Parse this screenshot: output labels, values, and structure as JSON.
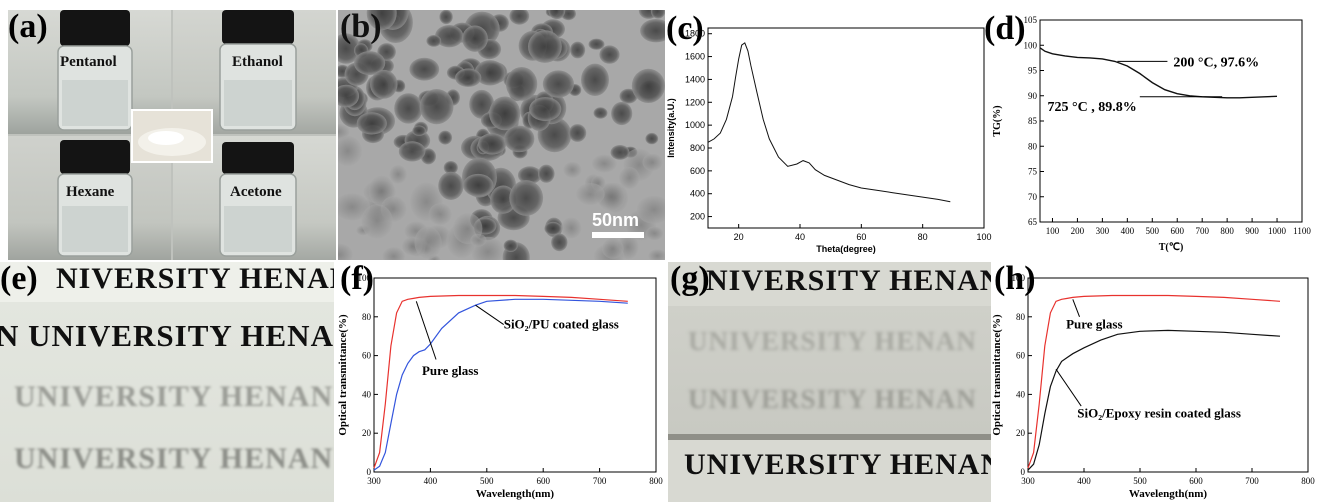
{
  "panels": {
    "a": {
      "label": "(a)",
      "vials": [
        "Pentanol",
        "Ethanol",
        "Hexane",
        "Acetone"
      ]
    },
    "b": {
      "label": "(b)",
      "scalebar": "50nm"
    },
    "c": {
      "label": "(c)"
    },
    "d": {
      "label": "(d)"
    },
    "e": {
      "label": "(e)",
      "strips": [
        "NIVERSITY HENAN U",
        "N UNIVERSITY HENAN",
        "UNIVERSITY HENAN",
        "UNIVERSITY HENAN"
      ]
    },
    "f": {
      "label": "(f)"
    },
    "g": {
      "label": "(g)",
      "strips": [
        "NIVERSITY HENAN",
        "UNIVERSITY HENAN",
        "UNIVERSITY HENAN",
        "UNIVERSITY HENAN"
      ]
    },
    "h": {
      "label": "(h)"
    }
  },
  "colors": {
    "red": "#e8322e",
    "blue": "#3355dd",
    "black": "#111111"
  },
  "chart_data": [
    {
      "id": "c",
      "type": "line",
      "xlabel": "Theta(degree)",
      "ylabel": "Intensity(a.U.)",
      "xlim": [
        10,
        100
      ],
      "ylim": [
        100,
        1850
      ],
      "xticks": [
        20,
        40,
        60,
        80,
        100
      ],
      "yticks": [
        200,
        400,
        600,
        800,
        1000,
        1200,
        1400,
        1600,
        1800
      ],
      "series": [
        {
          "x": [
            10,
            12,
            14,
            16,
            18,
            19,
            20,
            21,
            22,
            23,
            24,
            26,
            28,
            30,
            33,
            36,
            39,
            41,
            43,
            45,
            48,
            52,
            56,
            60,
            65,
            70,
            75,
            80,
            85,
            89
          ],
          "y": [
            850,
            880,
            930,
            1050,
            1250,
            1420,
            1580,
            1700,
            1720,
            1650,
            1520,
            1280,
            1050,
            880,
            720,
            640,
            660,
            690,
            670,
            610,
            560,
            520,
            480,
            450,
            430,
            410,
            390,
            370,
            350,
            330
          ]
        }
      ]
    },
    {
      "id": "d",
      "type": "line",
      "xlabel": "T(℃)",
      "ylabel": "TG(%)",
      "xlim": [
        50,
        1100
      ],
      "ylim": [
        65,
        105
      ],
      "xticks": [
        100,
        200,
        300,
        400,
        500,
        600,
        700,
        800,
        900,
        1000,
        1100
      ],
      "yticks": [
        65,
        70,
        75,
        80,
        85,
        90,
        95,
        100,
        105
      ],
      "annotations": [
        "200 °C, 97.6%",
        "725 °C , 89.8%"
      ],
      "series": [
        {
          "x": [
            50,
            70,
            100,
            150,
            200,
            250,
            300,
            350,
            400,
            450,
            500,
            550,
            600,
            650,
            700,
            750,
            800,
            850,
            900,
            950,
            1000
          ],
          "y": [
            99.5,
            98.8,
            98.3,
            97.9,
            97.6,
            97.5,
            97.3,
            96.8,
            95.9,
            94.4,
            92.6,
            91.2,
            90.4,
            90.0,
            89.8,
            89.7,
            89.6,
            89.6,
            89.7,
            89.8,
            89.9
          ]
        }
      ]
    },
    {
      "id": "f",
      "type": "line",
      "xlabel": "Wavelength(nm)",
      "ylabel": "Optical transmittance(%)",
      "xlim": [
        300,
        800
      ],
      "ylim": [
        0,
        100
      ],
      "xticks": [
        300,
        400,
        500,
        600,
        700,
        800
      ],
      "yticks": [
        0,
        20,
        40,
        60,
        80,
        100
      ],
      "annotations": [
        "SiO₂/PU coated glass",
        "Pure glass"
      ],
      "series": [
        {
          "color": "red",
          "x": [
            300,
            310,
            320,
            330,
            340,
            350,
            360,
            370,
            380,
            400,
            450,
            500,
            550,
            600,
            650,
            700,
            750
          ],
          "y": [
            2,
            10,
            35,
            65,
            82,
            88,
            89,
            89.5,
            90,
            90.5,
            91,
            91,
            91,
            90.5,
            90,
            89,
            88
          ]
        },
        {
          "color": "blue",
          "x": [
            300,
            310,
            320,
            330,
            340,
            350,
            360,
            370,
            380,
            390,
            400,
            420,
            450,
            480,
            500,
            550,
            600,
            650,
            700,
            750
          ],
          "y": [
            1,
            3,
            10,
            25,
            40,
            50,
            56,
            60,
            62,
            63,
            66,
            74,
            82,
            86,
            88,
            89,
            89,
            88.5,
            88,
            87
          ]
        }
      ]
    },
    {
      "id": "h",
      "type": "line",
      "xlabel": "Wavelength(nm)",
      "ylabel": "Optical transmittance(%)",
      "xlim": [
        300,
        800
      ],
      "ylim": [
        0,
        100
      ],
      "xticks": [
        300,
        400,
        500,
        600,
        700,
        800
      ],
      "yticks": [
        0,
        20,
        40,
        60,
        80,
        100
      ],
      "annotations": [
        "Pure glass",
        "SiO₂/Epoxy resin coated glass"
      ],
      "series": [
        {
          "color": "red",
          "x": [
            300,
            310,
            320,
            330,
            340,
            350,
            360,
            370,
            380,
            400,
            450,
            500,
            550,
            600,
            650,
            700,
            750
          ],
          "y": [
            2,
            10,
            35,
            65,
            82,
            88,
            89,
            89.5,
            90,
            90.5,
            91,
            91,
            91,
            90.5,
            90,
            89,
            88
          ]
        },
        {
          "color": "black",
          "x": [
            300,
            310,
            320,
            330,
            340,
            350,
            360,
            370,
            380,
            400,
            430,
            460,
            500,
            550,
            600,
            650,
            700,
            750
          ],
          "y": [
            1,
            4,
            14,
            30,
            44,
            52,
            57,
            59,
            61,
            64,
            68,
            71,
            72.5,
            73,
            72.5,
            72,
            71,
            70
          ]
        }
      ]
    }
  ]
}
